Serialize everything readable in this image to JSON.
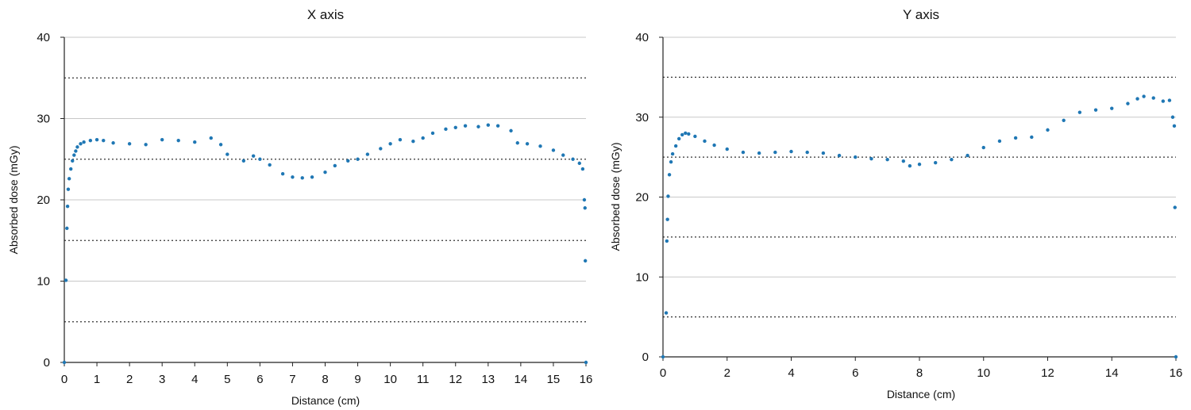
{
  "chart_data": [
    {
      "type": "scatter",
      "title": "X axis",
      "xlabel": "Distance (cm)",
      "ylabel": "Absorbed dose (mGy)",
      "xlim": [
        0,
        16
      ],
      "ylim": [
        0,
        40
      ],
      "x_ticks": [
        0,
        1,
        2,
        3,
        4,
        5,
        6,
        7,
        8,
        9,
        10,
        11,
        12,
        13,
        14,
        15,
        16
      ],
      "y_ticks": [
        0,
        10,
        20,
        30,
        40
      ],
      "gridlines": [
        10,
        20,
        30,
        40
      ],
      "reference_lines": [
        5,
        15,
        25,
        35
      ],
      "grid": true,
      "marker_color": "#1f77b4",
      "series": [
        {
          "points": [
            [
              0.0,
              0.0
            ],
            [
              0.05,
              10.1
            ],
            [
              0.08,
              16.5
            ],
            [
              0.1,
              19.2
            ],
            [
              0.12,
              21.3
            ],
            [
              0.15,
              22.6
            ],
            [
              0.2,
              23.8
            ],
            [
              0.25,
              24.8
            ],
            [
              0.3,
              25.5
            ],
            [
              0.35,
              26.0
            ],
            [
              0.4,
              26.5
            ],
            [
              0.5,
              26.9
            ],
            [
              0.6,
              27.1
            ],
            [
              0.8,
              27.3
            ],
            [
              1.0,
              27.4
            ],
            [
              1.2,
              27.3
            ],
            [
              1.5,
              27.0
            ],
            [
              2.0,
              26.9
            ],
            [
              2.5,
              26.8
            ],
            [
              3.0,
              27.4
            ],
            [
              3.5,
              27.3
            ],
            [
              4.0,
              27.1
            ],
            [
              4.5,
              27.6
            ],
            [
              4.8,
              26.8
            ],
            [
              5.0,
              25.6
            ],
            [
              5.5,
              24.8
            ],
            [
              5.8,
              25.4
            ],
            [
              6.0,
              25.0
            ],
            [
              6.3,
              24.3
            ],
            [
              6.7,
              23.2
            ],
            [
              7.0,
              22.8
            ],
            [
              7.3,
              22.7
            ],
            [
              7.6,
              22.8
            ],
            [
              8.0,
              23.4
            ],
            [
              8.3,
              24.2
            ],
            [
              8.7,
              24.8
            ],
            [
              9.0,
              25.0
            ],
            [
              9.3,
              25.6
            ],
            [
              9.7,
              26.3
            ],
            [
              10.0,
              26.9
            ],
            [
              10.3,
              27.4
            ],
            [
              10.7,
              27.2
            ],
            [
              11.0,
              27.6
            ],
            [
              11.3,
              28.2
            ],
            [
              11.7,
              28.7
            ],
            [
              12.0,
              28.9
            ],
            [
              12.3,
              29.1
            ],
            [
              12.7,
              29.0
            ],
            [
              13.0,
              29.2
            ],
            [
              13.3,
              29.1
            ],
            [
              13.7,
              28.5
            ],
            [
              13.9,
              27.0
            ],
            [
              14.2,
              26.9
            ],
            [
              14.6,
              26.6
            ],
            [
              15.0,
              26.1
            ],
            [
              15.3,
              25.5
            ],
            [
              15.6,
              25.0
            ],
            [
              15.8,
              24.5
            ],
            [
              15.9,
              23.8
            ],
            [
              15.95,
              20.0
            ],
            [
              15.97,
              19.0
            ],
            [
              15.98,
              12.5
            ],
            [
              16.0,
              0.0
            ]
          ]
        }
      ]
    },
    {
      "type": "scatter",
      "title": "Y axis",
      "xlabel": "Distance (cm)",
      "ylabel": "Absorbed dose (mGy)",
      "xlim": [
        0,
        16
      ],
      "ylim": [
        0,
        40
      ],
      "x_ticks": [
        0,
        2,
        4,
        6,
        8,
        10,
        12,
        14,
        16
      ],
      "y_ticks": [
        0,
        10,
        20,
        30,
        40
      ],
      "gridlines": [
        10,
        20,
        30,
        40
      ],
      "reference_lines": [
        5,
        15,
        25,
        35
      ],
      "grid": true,
      "marker_color": "#1f77b4",
      "series": [
        {
          "points": [
            [
              0.0,
              0.0
            ],
            [
              0.1,
              5.5
            ],
            [
              0.12,
              14.5
            ],
            [
              0.14,
              17.2
            ],
            [
              0.16,
              20.1
            ],
            [
              0.2,
              22.8
            ],
            [
              0.25,
              24.4
            ],
            [
              0.3,
              25.4
            ],
            [
              0.4,
              26.4
            ],
            [
              0.5,
              27.3
            ],
            [
              0.6,
              27.8
            ],
            [
              0.7,
              28.0
            ],
            [
              0.8,
              27.9
            ],
            [
              1.0,
              27.6
            ],
            [
              1.3,
              27.0
            ],
            [
              1.6,
              26.5
            ],
            [
              2.0,
              26.0
            ],
            [
              2.5,
              25.6
            ],
            [
              3.0,
              25.5
            ],
            [
              3.5,
              25.6
            ],
            [
              4.0,
              25.7
            ],
            [
              4.5,
              25.6
            ],
            [
              5.0,
              25.5
            ],
            [
              5.5,
              25.2
            ],
            [
              6.0,
              25.0
            ],
            [
              6.5,
              24.8
            ],
            [
              7.0,
              24.7
            ],
            [
              7.5,
              24.5
            ],
            [
              7.7,
              23.9
            ],
            [
              8.0,
              24.1
            ],
            [
              8.5,
              24.3
            ],
            [
              9.0,
              24.7
            ],
            [
              9.5,
              25.2
            ],
            [
              10.0,
              26.2
            ],
            [
              10.5,
              27.0
            ],
            [
              11.0,
              27.4
            ],
            [
              11.5,
              27.5
            ],
            [
              12.0,
              28.4
            ],
            [
              12.5,
              29.6
            ],
            [
              13.0,
              30.6
            ],
            [
              13.5,
              30.9
            ],
            [
              14.0,
              31.1
            ],
            [
              14.5,
              31.7
            ],
            [
              14.8,
              32.3
            ],
            [
              15.0,
              32.6
            ],
            [
              15.3,
              32.4
            ],
            [
              15.6,
              32.0
            ],
            [
              15.8,
              32.1
            ],
            [
              15.9,
              30.0
            ],
            [
              15.95,
              28.9
            ],
            [
              15.97,
              18.7
            ],
            [
              16.0,
              0.0
            ]
          ]
        }
      ]
    }
  ]
}
